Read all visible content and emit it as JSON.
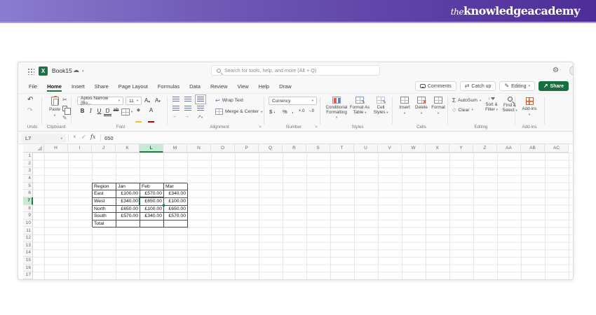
{
  "banner": {
    "logo_the": "the",
    "logo_rest": "knowledgeacademy"
  },
  "titlebar": {
    "workbook_name": "Book15",
    "search_placeholder": "Search for tools, help, and more (Alt + Q)"
  },
  "tabs": [
    {
      "label": "File",
      "active": false
    },
    {
      "label": "Home",
      "active": true
    },
    {
      "label": "Insert",
      "active": false
    },
    {
      "label": "Share",
      "active": false
    },
    {
      "label": "Page Layout",
      "active": false
    },
    {
      "label": "Formulas",
      "active": false
    },
    {
      "label": "Data",
      "active": false
    },
    {
      "label": "Review",
      "active": false
    },
    {
      "label": "View",
      "active": false
    },
    {
      "label": "Help",
      "active": false
    },
    {
      "label": "Draw",
      "active": false
    }
  ],
  "tab_actions": {
    "comments": "Comments",
    "catch_up": "Catch up",
    "editing": "Editing",
    "share": "Share"
  },
  "ribbon": {
    "undo_label": "Undo",
    "clipboard": {
      "paste": "Paste",
      "label": "Clipboard"
    },
    "font": {
      "name": "Aptos Narrow (Bo...",
      "size": "11",
      "bold": "B",
      "italic": "I",
      "underline": "U",
      "double_underline": "D",
      "strike": "ab",
      "label": "Font"
    },
    "alignment": {
      "wrap": "Wrap Text",
      "merge": "Merge & Center",
      "label": "Alignment"
    },
    "number": {
      "format": "Currency",
      "dollar": "$",
      "percent": "%",
      "comma": ",",
      "inc": "+.0",
      "dec": "-.0",
      "label": "Number"
    },
    "styles": {
      "buttons": [
        "Conditional Formatting",
        "Format As Table",
        "Cell Styles"
      ],
      "label": "Styles"
    },
    "cells": {
      "buttons": [
        "Insert",
        "Delete",
        "Format"
      ],
      "label": "Cells"
    },
    "editing": {
      "sigma": "Σ",
      "autosum": "AutoSum",
      "clear": "Clear",
      "sort": "Sort & Filter",
      "find": "Find & Select",
      "label": "Editing"
    },
    "addins": {
      "button": "Add-ins",
      "label": "Add-ins"
    }
  },
  "formula_bar": {
    "name_box": "L7",
    "fx": "fx",
    "content": "650"
  },
  "grid": {
    "columns": [
      "H",
      "I",
      "J",
      "K",
      "L",
      "M",
      "N",
      "O",
      "P",
      "Q",
      "R",
      "S",
      "T",
      "U",
      "V",
      "W",
      "X",
      "Y",
      "Z",
      "AA",
      "AB",
      "AC"
    ],
    "row_count": 17,
    "selected_column": "L",
    "selected_row": 7,
    "table": {
      "origin_col": "J",
      "origin_row": 5,
      "headers": [
        "Region",
        "Jan",
        "Feb",
        "Mar"
      ],
      "rows": [
        [
          "East",
          "£100.00",
          "£570.00",
          "£340.00"
        ],
        [
          "West",
          "£340.00",
          "£650.00",
          "£100.00"
        ],
        [
          "North",
          "£650.00",
          "£100.00",
          "£650.00"
        ],
        [
          "South",
          "£570.00",
          "£340.00",
          "£570.00"
        ],
        [
          "Total",
          "",
          "",
          ""
        ]
      ],
      "selected_cell": {
        "ref": "L7",
        "value": "£650.00"
      }
    }
  },
  "colors": {
    "brand_purple_dark": "#4e2d97",
    "brand_purple_light": "#8a7cce",
    "excel_green": "#1e7145",
    "selection_green": "#1a7f47",
    "selection_fill": "#c9e8d6"
  }
}
